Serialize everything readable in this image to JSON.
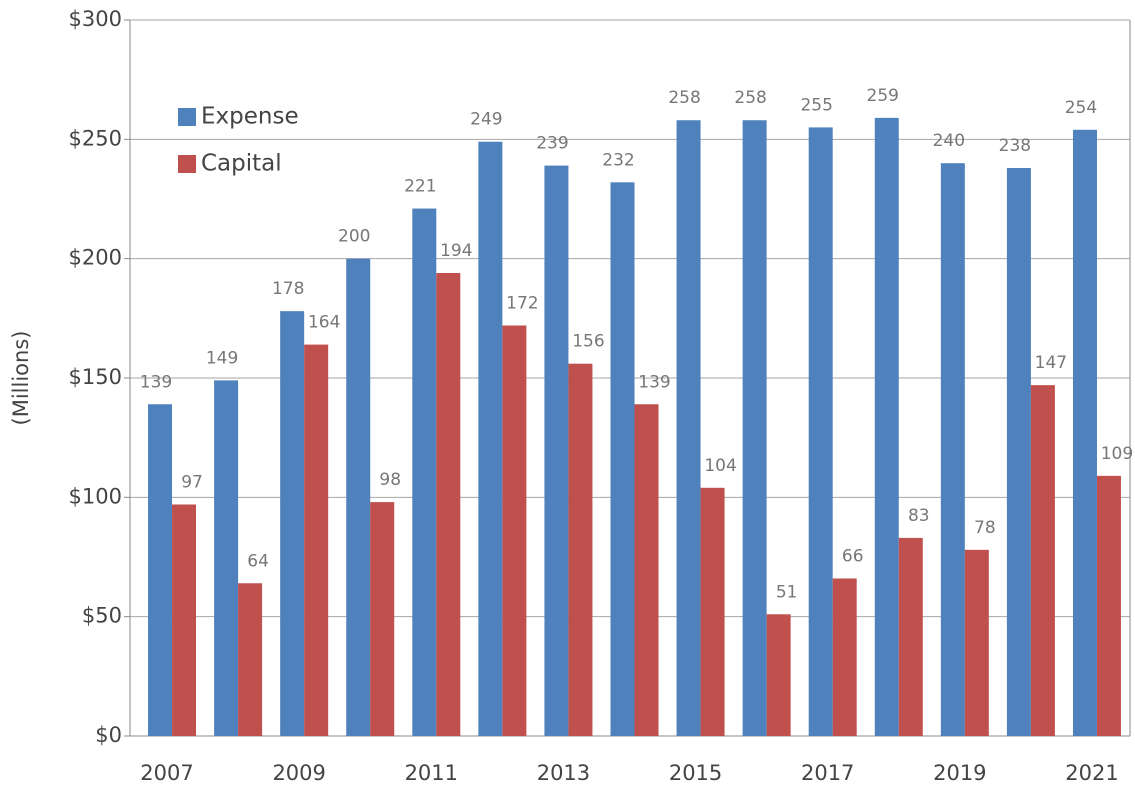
{
  "chart_data": {
    "type": "bar",
    "y_label": "(Millions)",
    "categories": [
      "2007",
      null,
      "2009",
      null,
      "2011",
      null,
      "2013",
      null,
      "2015",
      null,
      "2017",
      null,
      "2019",
      null,
      "2021"
    ],
    "series": [
      {
        "name": "Expense",
        "color": "#4f81bd",
        "values": [
          139,
          149,
          178,
          200,
          221,
          249,
          239,
          232,
          258,
          258,
          255,
          259,
          240,
          238,
          254
        ]
      },
      {
        "name": "Capital",
        "color": "#c0504d",
        "values": [
          97,
          64,
          164,
          98,
          194,
          172,
          156,
          139,
          104,
          51,
          66,
          83,
          78,
          147,
          109
        ]
      }
    ],
    "ylim": [
      0,
      300
    ],
    "yticks": [
      {
        "value": 0,
        "label": "$0"
      },
      {
        "value": 50,
        "label": "$50"
      },
      {
        "value": 100,
        "label": "$100"
      },
      {
        "value": 150,
        "label": "$150"
      },
      {
        "value": 200,
        "label": "$200"
      },
      {
        "value": 250,
        "label": "$250"
      },
      {
        "value": 300,
        "label": "$300"
      }
    ],
    "grid": true,
    "legend": "upper-left"
  }
}
